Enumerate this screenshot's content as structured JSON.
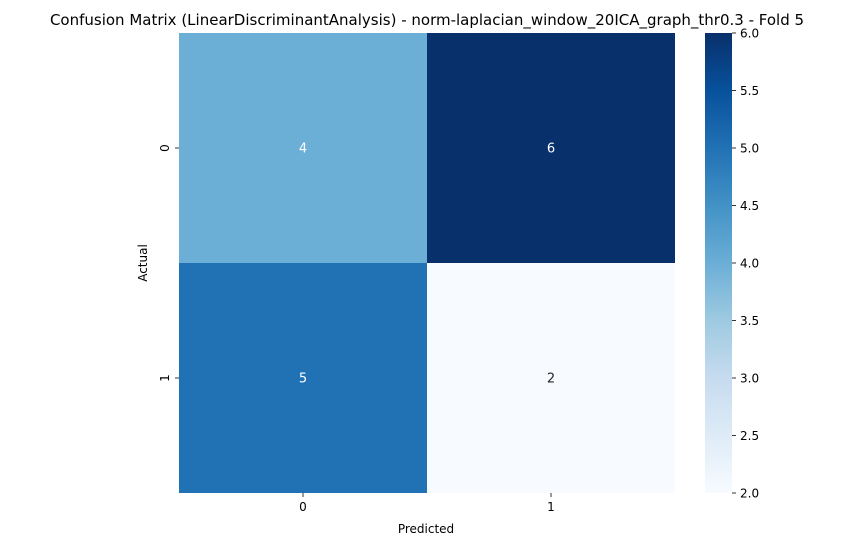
{
  "chart_data": {
    "type": "heatmap",
    "title": "Confusion Matrix (LinearDiscriminantAnalysis) - norm-laplacian_window_20ICA_graph_thr0.3 - Fold 5",
    "xlabel": "Predicted",
    "ylabel": "Actual",
    "x_categories": [
      "0",
      "1"
    ],
    "y_categories": [
      "0",
      "1"
    ],
    "values": [
      [
        4,
        6
      ],
      [
        5,
        2
      ]
    ],
    "colorscale": "Blues",
    "colorbar": {
      "range": [
        2.0,
        6.0
      ],
      "ticks": [
        2.0,
        2.5,
        3.0,
        3.5,
        4.0,
        4.5,
        5.0,
        5.5,
        6.0
      ],
      "tick_labels": [
        "2.0",
        "2.5",
        "3.0",
        "3.5",
        "4.0",
        "4.5",
        "5.0",
        "5.5",
        "6.0"
      ]
    },
    "grid": false,
    "legend": "none"
  }
}
